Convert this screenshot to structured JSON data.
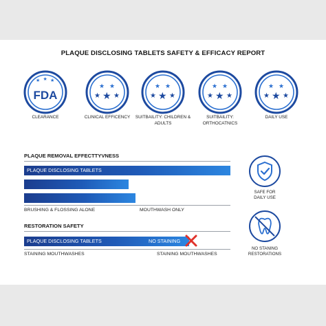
{
  "report": {
    "title": "PLAQUE DISCLOSING TABLETS SAFETY & EFFICACY REPORT",
    "badges": [
      {
        "icon": "fda-stars-badge-icon",
        "badge_text": "FDA",
        "label": "CLEARANCE"
      },
      {
        "icon": "five-stars-badge-icon",
        "label": "CLINICAL EFFICENCY"
      },
      {
        "icon": "five-stars-badge-icon",
        "label": "SUITBAILITY: CHILDREN & ADULTS"
      },
      {
        "icon": "five-stars-badge-icon",
        "label": "SUITBAILITY: ORTHOCATNICS"
      },
      {
        "icon": "five-stars-badge-icon",
        "label": "DAILY USE"
      }
    ]
  },
  "removal": {
    "title": "PLAQUE REMOVAL EFFECTTYVNESS",
    "bar1_label": "PLAQUE DISCLOSING TABLETS",
    "caption_left": "BRUSHING & FLOSSING ALONE",
    "caption_right": "MOUTHWASH ONLY"
  },
  "restoration": {
    "title": "RESTORATION SAFETY",
    "bar_label": "PLAQUE DISCLOSING TABLETS",
    "bar_right_text": "NO STAINING",
    "caption_left": "STAINING MOUTHWASHES",
    "caption_right": "STAINING MOUTHWASHES"
  },
  "side": {
    "safe_label_1": "SAFE FOR",
    "safe_label_2": "DAILY USE",
    "stain_label_1": "NO STANING",
    "stain_label_2": "RESTORATIONS"
  },
  "colors": {
    "navy": "#1b3d8e",
    "blue": "#2a6fd0",
    "cross_red": "#e0322b"
  }
}
